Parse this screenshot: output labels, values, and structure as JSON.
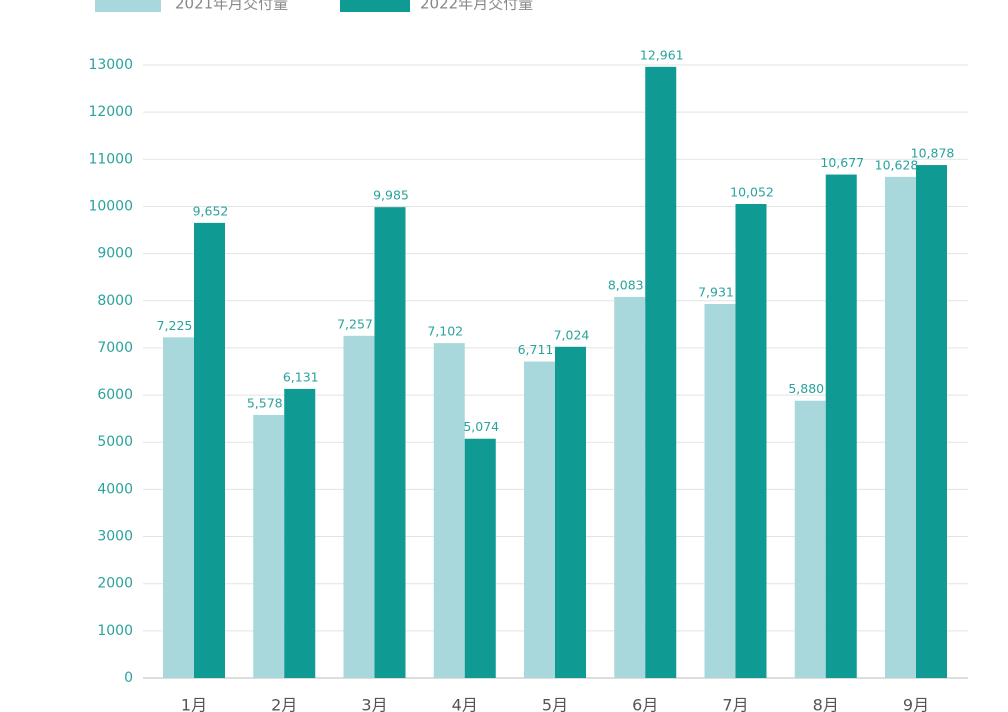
{
  "chart_data": {
    "type": "bar",
    "categories": [
      "1月",
      "2月",
      "3月",
      "4月",
      "5月",
      "6月",
      "7月",
      "8月",
      "9月"
    ],
    "series": [
      {
        "name": "2021年月交付量",
        "color": "#a8d8dc",
        "values": [
          7225,
          5578,
          7257,
          7102,
          6711,
          8083,
          7931,
          5880,
          10628
        ],
        "value_labels": [
          "7,225",
          "5,578",
          "7,257",
          "7,102",
          "6,711",
          "8,083",
          "7,931",
          "5,880",
          "10,628"
        ]
      },
      {
        "name": "2022年月交付量",
        "color": "#0f9a94",
        "values": [
          9652,
          6131,
          9985,
          5074,
          7024,
          12961,
          10052,
          10677,
          10878
        ],
        "value_labels": [
          "9,652",
          "6,131",
          "9,985",
          "5,074",
          "7,024",
          "12,961",
          "10,052",
          "10,677",
          "10,878"
        ]
      }
    ],
    "ylim": [
      0,
      13000
    ],
    "yticks": [
      0,
      1000,
      2000,
      3000,
      4000,
      5000,
      6000,
      7000,
      8000,
      9000,
      10000,
      11000,
      12000,
      13000
    ],
    "grid": true
  }
}
